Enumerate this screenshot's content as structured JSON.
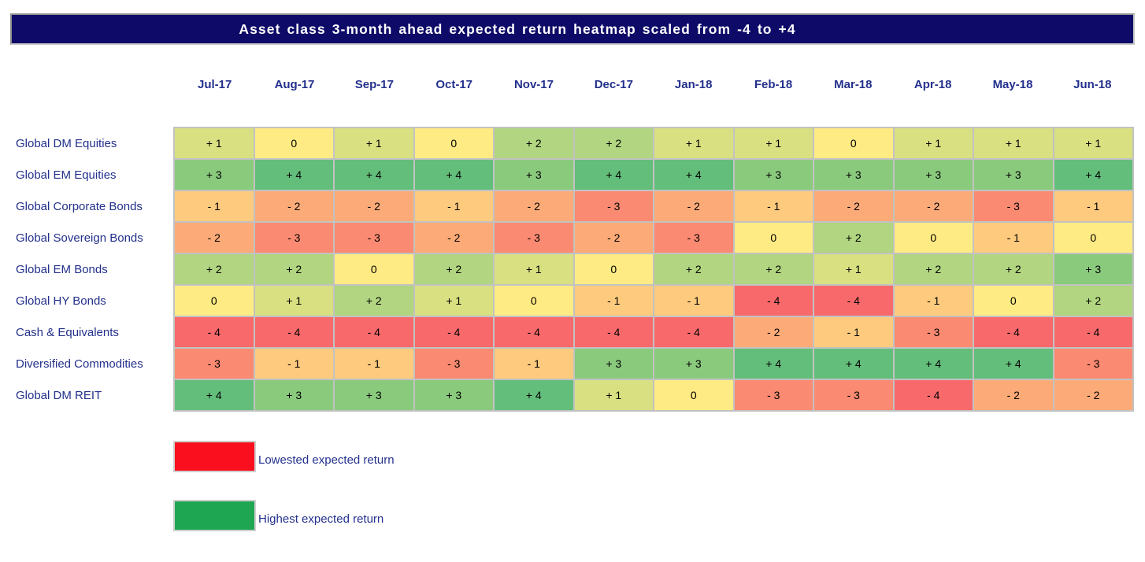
{
  "title": "Asset class 3-month ahead expected return heatmap scaled from -4 to +4",
  "chart_data": {
    "type": "heatmap",
    "title": "Asset class 3-month ahead expected return heatmap scaled from -4 to +4",
    "x": [
      "Jul-17",
      "Aug-17",
      "Sep-17",
      "Oct-17",
      "Nov-17",
      "Dec-17",
      "Jan-18",
      "Feb-18",
      "Mar-18",
      "Apr-18",
      "May-18",
      "Jun-18"
    ],
    "y": [
      "Global DM Equities",
      "Global EM Equities",
      "Global Corporate Bonds",
      "Global Sovereign Bonds",
      "Global EM Bonds",
      "Global HY Bonds",
      "Cash & Equivalents",
      "Diversified Commodities",
      "Global DM REIT"
    ],
    "values": [
      [
        1,
        0,
        1,
        0,
        2,
        2,
        1,
        1,
        0,
        1,
        1,
        1
      ],
      [
        3,
        4,
        4,
        4,
        3,
        4,
        4,
        3,
        3,
        3,
        3,
        4
      ],
      [
        -1,
        -2,
        -2,
        -1,
        -2,
        -3,
        -2,
        -1,
        -2,
        -2,
        -3,
        -1
      ],
      [
        -2,
        -3,
        -3,
        -2,
        -3,
        -2,
        -3,
        0,
        2,
        0,
        -1,
        0
      ],
      [
        2,
        2,
        0,
        2,
        1,
        0,
        2,
        2,
        1,
        2,
        2,
        3
      ],
      [
        0,
        1,
        2,
        1,
        0,
        -1,
        -1,
        -4,
        -4,
        -1,
        0,
        2
      ],
      [
        -4,
        -4,
        -4,
        -4,
        -4,
        -4,
        -4,
        -2,
        -1,
        -3,
        -4,
        -4
      ],
      [
        -3,
        -1,
        -1,
        -3,
        -1,
        3,
        3,
        4,
        4,
        4,
        4,
        -3
      ],
      [
        4,
        3,
        3,
        3,
        4,
        1,
        0,
        -3,
        -3,
        -4,
        -2,
        -2
      ]
    ],
    "zmin": -4,
    "zmax": 4,
    "legend_position": "bottom-left"
  },
  "colors": {
    "title_bg": "#0D0A68",
    "title_text": "#FFFFFF",
    "label_text": "#23308C",
    "cell_text": "#000000",
    "grid_line": "#C2C2C2",
    "scale": {
      "-4": "#F8696B",
      "-3": "#FA8A71",
      "-2": "#FCAB78",
      "-1": "#FDCA7E",
      "0": "#FFEB84",
      "1": "#D8E082",
      "2": "#B1D580",
      "3": "#8ACA7D",
      "4": "#63BE7B"
    }
  },
  "legend": [
    {
      "swatch_color": "#F90F1E",
      "label": "Lowested expected return"
    },
    {
      "swatch_color": "#1FA653",
      "label": "Highest expected return"
    }
  ]
}
